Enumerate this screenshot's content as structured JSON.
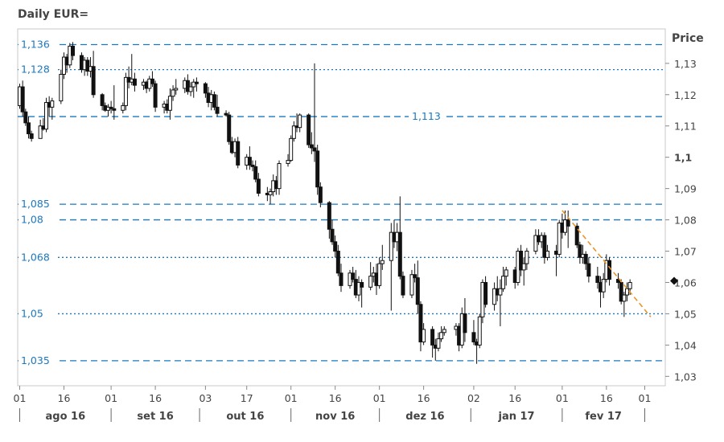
{
  "title": "Daily EUR=",
  "y_axis_title": "Price",
  "chart_data": {
    "type": "candlestick",
    "title": "Daily EUR=",
    "ylabel": "Price",
    "ylim": [
      1.027,
      1.141
    ],
    "y_ticks": [
      "1,13",
      "1,12",
      "1,11",
      "1,1",
      "1,09",
      "1,08",
      "1,07",
      "1,06",
      "1,05",
      "1,04",
      "1,03"
    ],
    "y_tick_values": [
      1.13,
      1.12,
      1.11,
      1.1,
      1.09,
      1.08,
      1.07,
      1.06,
      1.05,
      1.04,
      1.03
    ],
    "bold_tick": "1,1",
    "x_ticks": [
      "01",
      "16",
      "01",
      "16",
      "03",
      "17",
      "01",
      "16",
      "01",
      "16",
      "02",
      "16",
      "01",
      "16",
      "01"
    ],
    "x_tick_dates": [
      "2016-08-01",
      "2016-08-16",
      "2016-09-01",
      "2016-09-16",
      "2016-10-03",
      "2016-10-17",
      "2016-11-01",
      "2016-11-16",
      "2016-12-01",
      "2016-12-16",
      "2017-01-02",
      "2017-01-16",
      "2017-02-01",
      "2017-02-16",
      "2017-03-01"
    ],
    "months": [
      "ago 16",
      "set 16",
      "out 16",
      "nov 16",
      "dez 16",
      "jan 17",
      "fev 17"
    ],
    "horizontal_lines": [
      {
        "value": 1.136,
        "label": "1,136",
        "style": "dashed"
      },
      {
        "value": 1.128,
        "label": "1,128",
        "style": "dotted"
      },
      {
        "value": 1.113,
        "label": "1,113",
        "style": "dashed"
      },
      {
        "value": 1.085,
        "label": "1,085",
        "style": "dashed"
      },
      {
        "value": 1.08,
        "label": "1,08",
        "style": "dashed"
      },
      {
        "value": 1.068,
        "label": "1,068",
        "style": "dotted"
      },
      {
        "value": 1.05,
        "label": "1,05",
        "style": "dotted"
      },
      {
        "value": 1.035,
        "label": "1,035",
        "style": "dashed"
      }
    ],
    "trendline": {
      "from": [
        "2017-02-01",
        1.083
      ],
      "to": [
        "2017-03-03",
        1.049
      ],
      "color": "#e8962a"
    },
    "last_price_marker": {
      "value": 1.0605
    },
    "colors": {
      "level": "#1a78c2",
      "candle": "#111111",
      "trend": "#e8962a"
    },
    "candles": [
      [
        "2016-08-01",
        1.1165,
        1.1235,
        1.1155,
        1.1225
      ],
      [
        "2016-08-02",
        1.1225,
        1.1245,
        1.113,
        1.1145
      ],
      [
        "2016-08-03",
        1.1145,
        1.1155,
        1.11,
        1.111
      ],
      [
        "2016-08-04",
        1.111,
        1.113,
        1.106,
        1.1075
      ],
      [
        "2016-08-05",
        1.1075,
        1.1085,
        1.105,
        1.106
      ],
      [
        "2016-08-08",
        1.106,
        1.112,
        1.107,
        1.11
      ],
      [
        "2016-08-09",
        1.11,
        1.1125,
        1.1085,
        1.109
      ],
      [
        "2016-08-10",
        1.109,
        1.119,
        1.108,
        1.1175
      ],
      [
        "2016-08-11",
        1.1175,
        1.1195,
        1.113,
        1.116
      ],
      [
        "2016-08-12",
        1.116,
        1.119,
        1.112,
        1.118
      ],
      [
        "2016-08-15",
        1.118,
        1.128,
        1.117,
        1.1265
      ],
      [
        "2016-08-16",
        1.1265,
        1.1335,
        1.125,
        1.132
      ],
      [
        "2016-08-17",
        1.132,
        1.133,
        1.127,
        1.1295
      ],
      [
        "2016-08-18",
        1.1295,
        1.1365,
        1.1285,
        1.1355
      ],
      [
        "2016-08-19",
        1.1355,
        1.1368,
        1.131,
        1.1325
      ],
      [
        "2016-08-22",
        1.1325,
        1.1335,
        1.127,
        1.128
      ],
      [
        "2016-08-23",
        1.128,
        1.132,
        1.126,
        1.131
      ],
      [
        "2016-08-24",
        1.131,
        1.132,
        1.126,
        1.1275
      ],
      [
        "2016-08-25",
        1.1275,
        1.132,
        1.1255,
        1.129
      ],
      [
        "2016-08-26",
        1.129,
        1.134,
        1.119,
        1.12
      ],
      [
        "2016-08-29",
        1.12,
        1.1205,
        1.115,
        1.1165
      ],
      [
        "2016-08-30",
        1.1165,
        1.1175,
        1.1145,
        1.115
      ],
      [
        "2016-08-31",
        1.115,
        1.117,
        1.113,
        1.116
      ],
      [
        "2016-09-01",
        1.116,
        1.118,
        1.114,
        1.1155
      ],
      [
        "2016-09-02",
        1.1155,
        1.123,
        1.112,
        1.115
      ],
      [
        "2016-09-05",
        1.115,
        1.1175,
        1.114,
        1.1165
      ],
      [
        "2016-09-06",
        1.1165,
        1.127,
        1.115,
        1.1255
      ],
      [
        "2016-09-07",
        1.1255,
        1.129,
        1.122,
        1.124
      ],
      [
        "2016-09-08",
        1.124,
        1.133,
        1.123,
        1.125
      ],
      [
        "2016-09-09",
        1.125,
        1.127,
        1.121,
        1.123
      ],
      [
        "2016-09-12",
        1.123,
        1.125,
        1.1215,
        1.124
      ],
      [
        "2016-09-13",
        1.124,
        1.1245,
        1.1205,
        1.122
      ],
      [
        "2016-09-14",
        1.122,
        1.126,
        1.121,
        1.125
      ],
      [
        "2016-09-15",
        1.125,
        1.1275,
        1.1225,
        1.1235
      ],
      [
        "2016-09-16",
        1.1235,
        1.1245,
        1.1145,
        1.116
      ],
      [
        "2016-09-19",
        1.116,
        1.118,
        1.114,
        1.117
      ],
      [
        "2016-09-20",
        1.117,
        1.1185,
        1.114,
        1.115
      ],
      [
        "2016-09-21",
        1.115,
        1.122,
        1.112,
        1.1195
      ],
      [
        "2016-09-22",
        1.1195,
        1.123,
        1.118,
        1.1215
      ],
      [
        "2016-09-23",
        1.1215,
        1.125,
        1.12,
        1.122
      ],
      [
        "2016-09-26",
        1.122,
        1.1255,
        1.1205,
        1.1245
      ],
      [
        "2016-09-27",
        1.1245,
        1.1265,
        1.12,
        1.121
      ],
      [
        "2016-09-28",
        1.121,
        1.124,
        1.1195,
        1.1225
      ],
      [
        "2016-09-29",
        1.1225,
        1.125,
        1.119,
        1.124
      ],
      [
        "2016-09-30",
        1.124,
        1.1255,
        1.121,
        1.1235
      ],
      [
        "2016-10-03",
        1.1235,
        1.124,
        1.119,
        1.1205
      ],
      [
        "2016-10-04",
        1.1205,
        1.1225,
        1.116,
        1.1175
      ],
      [
        "2016-10-05",
        1.1175,
        1.1215,
        1.115,
        1.12
      ],
      [
        "2016-10-06",
        1.12,
        1.121,
        1.115,
        1.116
      ],
      [
        "2016-10-07",
        1.116,
        1.12,
        1.113,
        1.114
      ],
      [
        "2016-10-10",
        1.114,
        1.115,
        1.113,
        1.1135
      ],
      [
        "2016-10-11",
        1.1135,
        1.1145,
        1.104,
        1.105
      ],
      [
        "2016-10-12",
        1.105,
        1.1065,
        1.101,
        1.1015
      ],
      [
        "2016-10-13",
        1.1015,
        1.106,
        1.1,
        1.105
      ],
      [
        "2016-10-14",
        1.105,
        1.1065,
        1.0965,
        1.0975
      ],
      [
        "2016-10-17",
        1.0975,
        1.101,
        1.096,
        1.1
      ],
      [
        "2016-10-18",
        1.1,
        1.1035,
        1.096,
        1.0975
      ],
      [
        "2016-10-19",
        1.0975,
        1.099,
        1.0955,
        1.097
      ],
      [
        "2016-10-20",
        1.097,
        1.099,
        1.092,
        1.093
      ],
      [
        "2016-10-21",
        1.093,
        1.095,
        1.0875,
        1.0885
      ],
      [
        "2016-10-24",
        1.0885,
        1.0905,
        1.086,
        1.088
      ],
      [
        "2016-10-25",
        1.088,
        1.09,
        1.085,
        1.089
      ],
      [
        "2016-10-26",
        1.089,
        1.0945,
        1.0875,
        1.0925
      ],
      [
        "2016-10-27",
        1.0925,
        1.094,
        1.088,
        1.09
      ],
      [
        "2016-10-28",
        1.09,
        1.099,
        1.088,
        1.098
      ],
      [
        "2016-10-31",
        1.098,
        1.101,
        1.097,
        1.099
      ],
      [
        "2016-11-01",
        1.099,
        1.107,
        1.0985,
        1.106
      ],
      [
        "2016-11-02",
        1.106,
        1.1115,
        1.105,
        1.11
      ],
      [
        "2016-11-03",
        1.11,
        1.114,
        1.108,
        1.1095
      ],
      [
        "2016-11-04",
        1.1095,
        1.114,
        1.108,
        1.1135
      ],
      [
        "2016-11-07",
        1.1135,
        1.114,
        1.103,
        1.104
      ],
      [
        "2016-11-08",
        1.104,
        1.108,
        1.101,
        1.103
      ],
      [
        "2016-11-09",
        1.103,
        1.13,
        1.0985,
        1.102
      ],
      [
        "2016-11-10",
        1.102,
        1.104,
        1.088,
        1.0905
      ],
      [
        "2016-11-11",
        1.0905,
        1.092,
        1.084,
        1.0855
      ],
      [
        "2016-11-14",
        1.0855,
        1.086,
        1.074,
        1.077
      ],
      [
        "2016-11-15",
        1.077,
        1.08,
        1.072,
        1.073
      ],
      [
        "2016-11-16",
        1.073,
        1.075,
        1.068,
        1.07
      ],
      [
        "2016-11-17",
        1.07,
        1.072,
        1.062,
        1.063
      ],
      [
        "2016-11-18",
        1.063,
        1.066,
        1.057,
        1.059
      ],
      [
        "2016-11-21",
        1.059,
        1.064,
        1.058,
        1.063
      ],
      [
        "2016-11-22",
        1.063,
        1.065,
        1.06,
        1.061
      ],
      [
        "2016-11-23",
        1.061,
        1.064,
        1.055,
        1.056
      ],
      [
        "2016-11-24",
        1.056,
        1.062,
        1.054,
        1.06
      ],
      [
        "2016-11-25",
        1.06,
        1.061,
        1.052,
        1.0585
      ],
      [
        "2016-11-28",
        1.0585,
        1.0665,
        1.0575,
        1.062
      ],
      [
        "2016-11-29",
        1.062,
        1.065,
        1.06,
        1.063
      ],
      [
        "2016-11-30",
        1.063,
        1.066,
        1.056,
        1.059
      ],
      [
        "2016-12-01",
        1.059,
        1.068,
        1.058,
        1.066
      ],
      [
        "2016-12-02",
        1.066,
        1.072,
        1.064,
        1.067
      ],
      [
        "2016-12-05",
        1.067,
        1.079,
        1.051,
        1.076
      ],
      [
        "2016-12-06",
        1.076,
        1.08,
        1.071,
        1.073
      ],
      [
        "2016-12-07",
        1.073,
        1.079,
        1.07,
        1.076
      ],
      [
        "2016-12-08",
        1.076,
        1.0875,
        1.061,
        1.062
      ],
      [
        "2016-12-09",
        1.062,
        1.0635,
        1.055,
        1.056
      ],
      [
        "2016-12-12",
        1.056,
        1.064,
        1.055,
        1.0625
      ],
      [
        "2016-12-13",
        1.0625,
        1.066,
        1.06,
        1.0615
      ],
      [
        "2016-12-14",
        1.0615,
        1.067,
        1.05,
        1.053
      ],
      [
        "2016-12-15",
        1.053,
        1.054,
        1.038,
        1.041
      ],
      [
        "2016-12-16",
        1.041,
        1.047,
        1.04,
        1.045
      ],
      [
        "2016-12-19",
        1.045,
        1.046,
        1.036,
        1.04
      ],
      [
        "2016-12-20",
        1.04,
        1.042,
        1.035,
        1.039
      ],
      [
        "2016-12-21",
        1.039,
        1.044,
        1.038,
        1.042
      ],
      [
        "2016-12-22",
        1.042,
        1.046,
        1.041,
        1.044
      ],
      [
        "2016-12-23",
        1.044,
        1.046,
        1.043,
        1.045
      ],
      [
        "2016-12-27",
        1.045,
        1.047,
        1.043,
        1.046
      ],
      [
        "2016-12-28",
        1.046,
        1.047,
        1.038,
        1.04
      ],
      [
        "2016-12-29",
        1.04,
        1.052,
        1.039,
        1.05
      ],
      [
        "2016-12-30",
        1.05,
        1.055,
        1.041,
        1.044
      ],
      [
        "2017-01-02",
        1.044,
        1.048,
        1.04,
        1.041
      ],
      [
        "2017-01-03",
        1.041,
        1.042,
        1.034,
        1.04
      ],
      [
        "2017-01-04",
        1.04,
        1.05,
        1.039,
        1.049
      ],
      [
        "2017-01-05",
        1.049,
        1.061,
        1.047,
        1.06
      ],
      [
        "2017-01-06",
        1.06,
        1.062,
        1.052,
        1.053
      ],
      [
        "2017-01-09",
        1.053,
        1.06,
        1.051,
        1.058
      ],
      [
        "2017-01-10",
        1.058,
        1.062,
        1.054,
        1.056
      ],
      [
        "2017-01-11",
        1.056,
        1.061,
        1.046,
        1.058
      ],
      [
        "2017-01-12",
        1.058,
        1.065,
        1.057,
        1.062
      ],
      [
        "2017-01-13",
        1.062,
        1.065,
        1.059,
        1.064
      ],
      [
        "2017-01-16",
        1.064,
        1.065,
        1.058,
        1.06
      ],
      [
        "2017-01-17",
        1.06,
        1.071,
        1.059,
        1.07
      ],
      [
        "2017-01-18",
        1.07,
        1.072,
        1.062,
        1.064
      ],
      [
        "2017-01-19",
        1.064,
        1.068,
        1.059,
        1.066
      ],
      [
        "2017-01-20",
        1.066,
        1.071,
        1.064,
        1.07
      ],
      [
        "2017-01-23",
        1.07,
        1.077,
        1.069,
        1.075
      ],
      [
        "2017-01-24",
        1.075,
        1.077,
        1.072,
        1.073
      ],
      [
        "2017-01-25",
        1.073,
        1.076,
        1.071,
        1.075
      ],
      [
        "2017-01-26",
        1.075,
        1.076,
        1.066,
        1.068
      ],
      [
        "2017-01-27",
        1.068,
        1.072,
        1.067,
        1.07
      ],
      [
        "2017-01-30",
        1.07,
        1.072,
        1.062,
        1.069
      ],
      [
        "2017-01-31",
        1.069,
        1.08,
        1.068,
        1.079
      ],
      [
        "2017-02-01",
        1.079,
        1.082,
        1.074,
        1.076
      ],
      [
        "2017-02-02",
        1.076,
        1.083,
        1.075,
        1.08
      ],
      [
        "2017-02-03",
        1.08,
        1.083,
        1.071,
        1.078
      ],
      [
        "2017-02-06",
        1.078,
        1.079,
        1.071,
        1.072
      ],
      [
        "2017-02-07",
        1.072,
        1.073,
        1.066,
        1.068
      ],
      [
        "2017-02-08",
        1.068,
        1.072,
        1.066,
        1.069
      ],
      [
        "2017-02-09",
        1.069,
        1.07,
        1.064,
        1.066
      ],
      [
        "2017-02-10",
        1.066,
        1.068,
        1.06,
        1.062
      ],
      [
        "2017-02-13",
        1.062,
        1.065,
        1.058,
        1.06
      ],
      [
        "2017-02-14",
        1.06,
        1.062,
        1.052,
        1.057
      ],
      [
        "2017-02-15",
        1.057,
        1.063,
        1.055,
        1.061
      ],
      [
        "2017-02-16",
        1.061,
        1.069,
        1.06,
        1.067
      ],
      [
        "2017-02-17",
        1.067,
        1.068,
        1.059,
        1.061
      ],
      [
        "2017-02-20",
        1.061,
        1.063,
        1.058,
        1.06
      ],
      [
        "2017-02-21",
        1.06,
        1.061,
        1.053,
        1.054
      ],
      [
        "2017-02-22",
        1.054,
        1.057,
        1.049,
        1.056
      ],
      [
        "2017-02-23",
        1.056,
        1.06,
        1.054,
        1.058
      ],
      [
        "2017-02-24",
        1.058,
        1.061,
        1.056,
        1.06
      ]
    ]
  }
}
